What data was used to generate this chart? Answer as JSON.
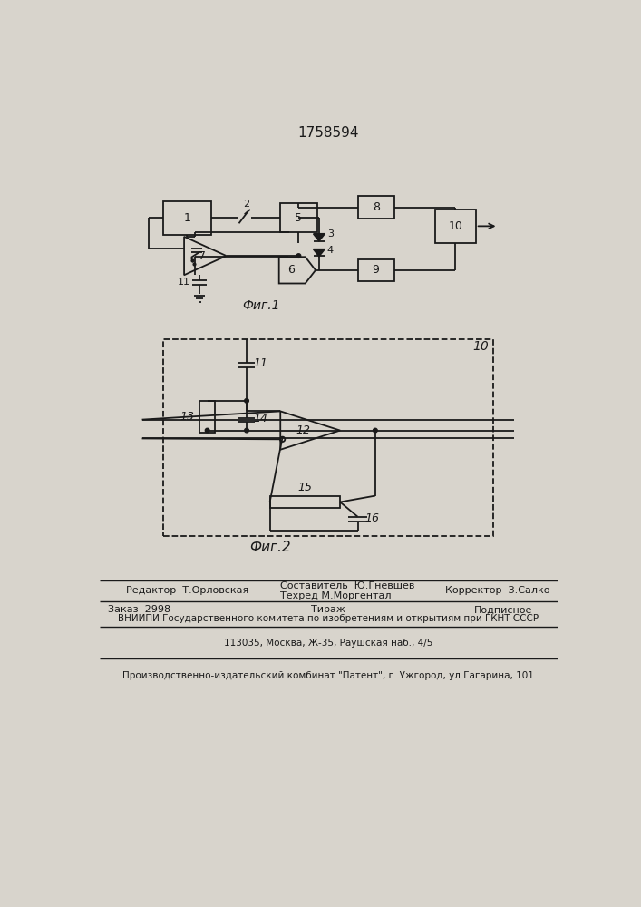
{
  "title": "1758594",
  "fig1_label": "Фиг.1",
  "fig2_label": "Фиг.2",
  "bg_color": "#d8d4cc",
  "line_color": "#1a1a1a",
  "footer_line1_left": "Редактор  Т.Орловская",
  "footer_line1_center_top": "Составитель  Ю.Гневшев",
  "footer_line1_center_bot": "Техред М.Моргентал",
  "footer_line1_right": "Корректор  З.Салко",
  "footer_line2_left": "Заказ  2998",
  "footer_line2_center": "Тираж",
  "footer_line2_right": "Подписное",
  "footer_line3": "ВНИИПИ Государственного комитета по изобретениям и открытиям при ГКНТ СССР",
  "footer_line4": "113035, Москва, Ж-35, Раушская наб., 4/5",
  "footer_line5": "Производственно-издательский комбинат \"Патент\", г. Ужгород, ул.Гагарина, 101"
}
